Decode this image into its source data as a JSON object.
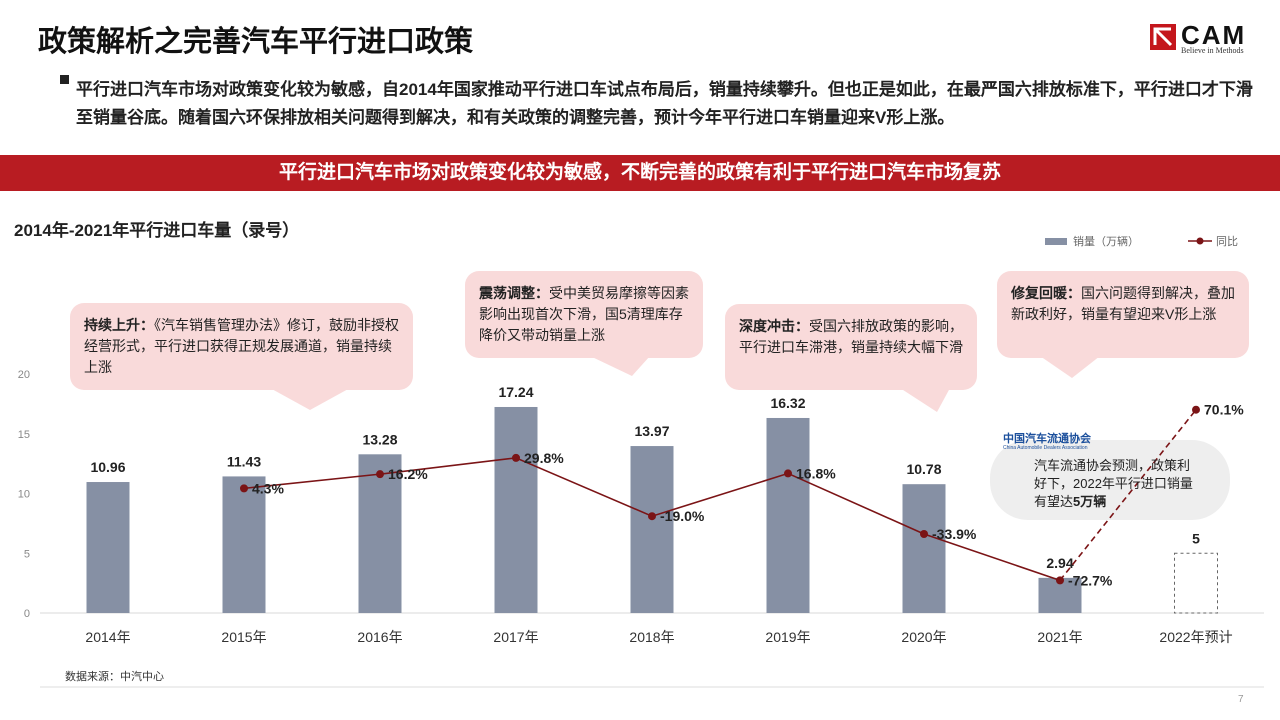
{
  "header": {
    "title": "政策解析之完善汽车平行进口政策",
    "logo": "CAM",
    "slogan": "Believe in Methods"
  },
  "summary": "平行进口汽车市场对政策变化较为敏感，自2014年国家推动平行进口车试点布局后，销量持续攀升。但也正是如此，在最严国六排放标准下，平行进口才下滑至销量谷底。随着国六环保排放相关问题得到解决，和有关政策的调整完善，预计今年平行进口车销量迎来V形上涨。",
  "banner": "平行进口汽车市场对政策变化较为敏感，不断完善的政策有利于平行进口汽车市场复苏",
  "chart_data": {
    "type": "bar",
    "title": "2014年-2021年平行进口车量（录号）",
    "categories": [
      "2014年",
      "2015年",
      "2016年",
      "2017年",
      "2018年",
      "2019年",
      "2020年",
      "2021年",
      "2022年预计"
    ],
    "series": [
      {
        "name": "销量（万辆）",
        "type": "bar",
        "color": "#8690a4",
        "values": [
          10.96,
          11.43,
          13.28,
          17.24,
          13.97,
          16.32,
          10.78,
          2.94,
          5
        ],
        "forecast_last": true
      },
      {
        "name": "同比",
        "type": "line",
        "axis": "y2",
        "color": "#7b1416",
        "values": [
          null,
          4.3,
          16.2,
          29.8,
          -19.0,
          16.8,
          -33.9,
          -72.7,
          70.1
        ],
        "value_labels": [
          null,
          "4.3%",
          "16.2%",
          "29.8%",
          "-19.0%",
          "16.8%",
          "-33.9%",
          "-72.7%",
          "70.1%"
        ],
        "forecast_last": true
      }
    ],
    "ylim": [
      0,
      20
    ],
    "yticks": [
      0,
      5,
      10,
      15,
      20
    ],
    "y2lim": [
      -100,
      100
    ],
    "grid": false,
    "legend": "top-right",
    "annotations": [
      {
        "title": "持续上升：",
        "text": "《汽车销售管理办法》修订，鼓励非授权经营形式，平行进口获得正规发展通道，销量持续上涨"
      },
      {
        "title": "震荡调整：",
        "text": "受中美贸易摩擦等因素影响出现首次下滑，国5清理库存降价又带动销量上涨"
      },
      {
        "title": "深度冲击：",
        "text": "受国六排放政策的影响，平行进口车滞港，销量持续大幅下滑"
      },
      {
        "title": "修复回暖：",
        "text": "国六问题得到解决，叠加新政利好，销量有望迎来V形上涨"
      }
    ]
  },
  "note": {
    "logo_cn": "中国汽车流通协会",
    "logo_en": "China Automobile Dealers Association",
    "text": "汽车流通协会预测，政策利好下，2022年平行进口销量有望达",
    "emphasis": "5万辆"
  },
  "source": "数据来源：中汽中心",
  "page": "7"
}
